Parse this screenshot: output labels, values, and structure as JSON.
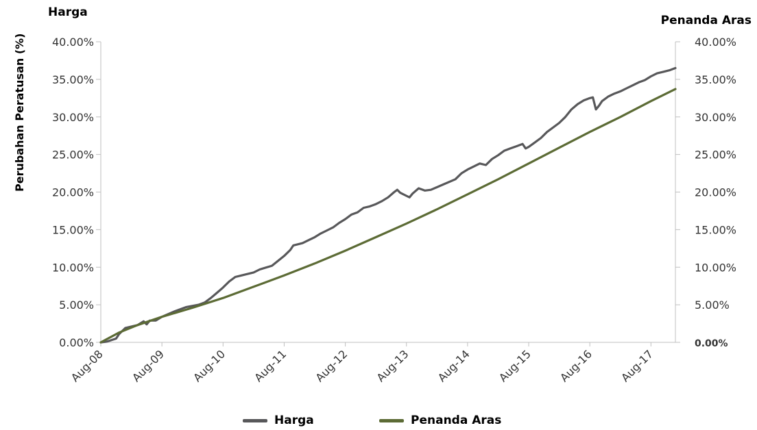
{
  "chart_data": {
    "type": "line",
    "title_left": "Harga",
    "title_right": "Penanda Aras",
    "ylabel": "Perubahan Peratusan (%)",
    "ylim": [
      0,
      40
    ],
    "y_ticks_left": [
      "0.00%",
      "5.00%",
      "10.00%",
      "15.00%",
      "20.00%",
      "25.00%",
      "30.00%",
      "35.00%",
      "40.00%"
    ],
    "y_ticks_right": [
      "0.00%",
      "5.00%",
      "10.00%",
      "15.00%",
      "20.00%",
      "25.00%",
      "30.00%",
      "35.00%",
      "40.00%"
    ],
    "x_ticks": [
      "Aug-08",
      "Aug-09",
      "Aug-10",
      "Aug-11",
      "Aug-12",
      "Aug-13",
      "Aug-14",
      "Aug-15",
      "Aug-16",
      "Aug-17"
    ],
    "xlim": [
      0,
      9.4
    ],
    "grid": false,
    "legend_position": "bottom",
    "series": [
      {
        "name": "Harga",
        "color": "#58585a",
        "points": [
          [
            0,
            0
          ],
          [
            0.1,
            0.1
          ],
          [
            0.25,
            0.5
          ],
          [
            0.3,
            1.1
          ],
          [
            0.4,
            1.9
          ],
          [
            0.6,
            2.3
          ],
          [
            0.7,
            2.8
          ],
          [
            0.75,
            2.4
          ],
          [
            0.8,
            2.9
          ],
          [
            0.9,
            2.9
          ],
          [
            1.0,
            3.4
          ],
          [
            1.2,
            4.1
          ],
          [
            1.4,
            4.7
          ],
          [
            1.6,
            5.0
          ],
          [
            1.7,
            5.3
          ],
          [
            1.8,
            5.9
          ],
          [
            1.9,
            6.6
          ],
          [
            2.0,
            7.3
          ],
          [
            2.1,
            8.1
          ],
          [
            2.2,
            8.7
          ],
          [
            2.3,
            8.9
          ],
          [
            2.5,
            9.3
          ],
          [
            2.6,
            9.7
          ],
          [
            2.8,
            10.2
          ],
          [
            3.0,
            11.5
          ],
          [
            3.1,
            12.3
          ],
          [
            3.15,
            12.9
          ],
          [
            3.3,
            13.2
          ],
          [
            3.4,
            13.6
          ],
          [
            3.5,
            14.0
          ],
          [
            3.6,
            14.5
          ],
          [
            3.7,
            14.9
          ],
          [
            3.8,
            15.3
          ],
          [
            3.9,
            15.9
          ],
          [
            4.0,
            16.4
          ],
          [
            4.1,
            17.0
          ],
          [
            4.2,
            17.3
          ],
          [
            4.3,
            17.9
          ],
          [
            4.4,
            18.1
          ],
          [
            4.5,
            18.4
          ],
          [
            4.6,
            18.8
          ],
          [
            4.7,
            19.3
          ],
          [
            4.8,
            20.0
          ],
          [
            4.85,
            20.3
          ],
          [
            4.9,
            19.9
          ],
          [
            5.0,
            19.5
          ],
          [
            5.05,
            19.3
          ],
          [
            5.1,
            19.8
          ],
          [
            5.2,
            20.5
          ],
          [
            5.3,
            20.2
          ],
          [
            5.4,
            20.3
          ],
          [
            5.6,
            21.0
          ],
          [
            5.8,
            21.7
          ],
          [
            5.9,
            22.5
          ],
          [
            6.0,
            23.0
          ],
          [
            6.1,
            23.4
          ],
          [
            6.2,
            23.8
          ],
          [
            6.3,
            23.6
          ],
          [
            6.4,
            24.4
          ],
          [
            6.5,
            24.9
          ],
          [
            6.6,
            25.5
          ],
          [
            6.7,
            25.8
          ],
          [
            6.8,
            26.1
          ],
          [
            6.9,
            26.4
          ],
          [
            6.95,
            25.8
          ],
          [
            7.0,
            26.0
          ],
          [
            7.1,
            26.6
          ],
          [
            7.2,
            27.2
          ],
          [
            7.3,
            28.0
          ],
          [
            7.4,
            28.6
          ],
          [
            7.5,
            29.2
          ],
          [
            7.6,
            30.0
          ],
          [
            7.7,
            31.0
          ],
          [
            7.8,
            31.7
          ],
          [
            7.9,
            32.2
          ],
          [
            8.0,
            32.5
          ],
          [
            8.05,
            32.6
          ],
          [
            8.1,
            31.0
          ],
          [
            8.15,
            31.5
          ],
          [
            8.2,
            32.1
          ],
          [
            8.3,
            32.7
          ],
          [
            8.4,
            33.1
          ],
          [
            8.5,
            33.4
          ],
          [
            8.6,
            33.8
          ],
          [
            8.7,
            34.2
          ],
          [
            8.8,
            34.6
          ],
          [
            8.9,
            34.9
          ],
          [
            9.0,
            35.4
          ],
          [
            9.1,
            35.8
          ],
          [
            9.2,
            36.0
          ],
          [
            9.3,
            36.2
          ],
          [
            9.4,
            36.5
          ]
        ]
      },
      {
        "name": "Penanda Aras",
        "color": "#5c6b35",
        "points": [
          [
            0,
            0
          ],
          [
            0.3,
            1.3
          ],
          [
            0.6,
            2.3
          ],
          [
            1.0,
            3.4
          ],
          [
            1.5,
            4.6
          ],
          [
            2.0,
            5.9
          ],
          [
            2.5,
            7.4
          ],
          [
            3.0,
            8.9
          ],
          [
            3.5,
            10.5
          ],
          [
            4.0,
            12.2
          ],
          [
            4.5,
            14.0
          ],
          [
            5.0,
            15.8
          ],
          [
            5.5,
            17.7
          ],
          [
            6.0,
            19.7
          ],
          [
            6.5,
            21.7
          ],
          [
            7.0,
            23.8
          ],
          [
            7.5,
            25.9
          ],
          [
            8.0,
            28.0
          ],
          [
            8.5,
            30.0
          ],
          [
            9.0,
            32.1
          ],
          [
            9.4,
            33.7
          ]
        ]
      }
    ]
  }
}
